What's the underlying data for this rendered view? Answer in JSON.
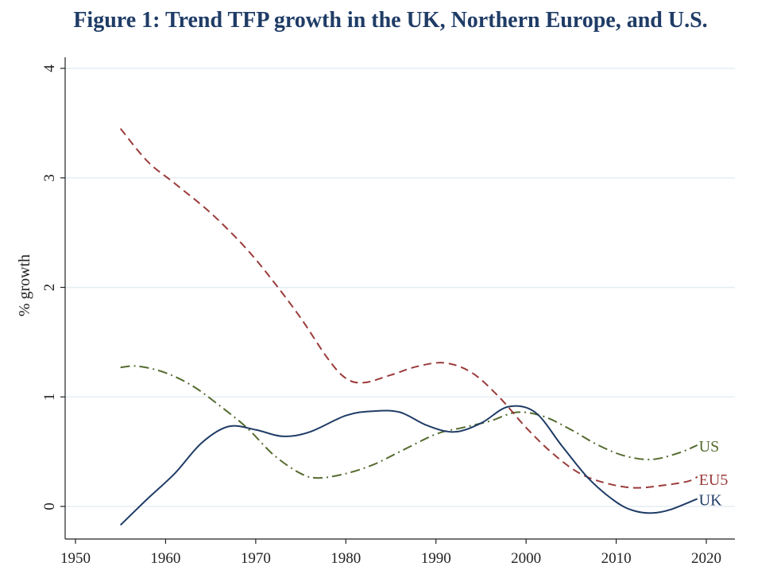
{
  "title": "Figure 1: Trend TFP growth in the UK, Northern Europe, and U.S.",
  "chart_data": {
    "type": "line",
    "title": "Figure 1: Trend TFP growth in the UK, Northern Europe, and U.S.",
    "xlabel": "",
    "ylabel": "% growth",
    "xlim": [
      1948,
      2023
    ],
    "ylim": [
      -0.3,
      4.1
    ],
    "x_ticks": [
      1950,
      1960,
      1970,
      1980,
      1990,
      2000,
      2010,
      2020
    ],
    "y_ticks": [
      0,
      1,
      2,
      3,
      4
    ],
    "grid": "horizontal",
    "legend": "labels at line ends",
    "series": [
      {
        "name": "US",
        "color": "#556b2f",
        "dash": "dash-dot",
        "x": [
          1955,
          1957,
          1960,
          1963,
          1966,
          1969,
          1972,
          1975,
          1977,
          1980,
          1983,
          1986,
          1990,
          1993,
          1996,
          1999,
          2002,
          2005,
          2008,
          2011,
          2014,
          2017,
          2019
        ],
        "y": [
          1.27,
          1.28,
          1.22,
          1.1,
          0.92,
          0.72,
          0.47,
          0.3,
          0.26,
          0.3,
          0.38,
          0.5,
          0.66,
          0.72,
          0.78,
          0.86,
          0.82,
          0.7,
          0.56,
          0.46,
          0.43,
          0.49,
          0.56
        ]
      },
      {
        "name": "EU5",
        "color": "#9b3b3b",
        "dash": "dash",
        "x": [
          1955,
          1958,
          1961,
          1965,
          1969,
          1972,
          1975,
          1978,
          1980,
          1982,
          1985,
          1988,
          1991,
          1994,
          1997,
          2000,
          2003,
          2006,
          2009,
          2012,
          2015,
          2018,
          2019
        ],
        "y": [
          3.45,
          3.15,
          2.95,
          2.68,
          2.35,
          2.05,
          1.72,
          1.35,
          1.17,
          1.13,
          1.2,
          1.28,
          1.31,
          1.22,
          1.0,
          0.72,
          0.48,
          0.3,
          0.21,
          0.17,
          0.19,
          0.23,
          0.27
        ]
      },
      {
        "name": "UK",
        "color": "#1f3c66",
        "dash": "solid",
        "x": [
          1955,
          1958,
          1961,
          1964,
          1967,
          1970,
          1973,
          1976,
          1980,
          1983,
          1986,
          1989,
          1992,
          1995,
          1998,
          2001,
          2004,
          2007,
          2010,
          2012,
          2014,
          2016,
          2019
        ],
        "y": [
          -0.17,
          0.07,
          0.3,
          0.58,
          0.73,
          0.7,
          0.64,
          0.68,
          0.83,
          0.87,
          0.86,
          0.74,
          0.68,
          0.76,
          0.91,
          0.86,
          0.55,
          0.25,
          0.04,
          -0.04,
          -0.06,
          -0.03,
          0.07
        ]
      }
    ]
  }
}
